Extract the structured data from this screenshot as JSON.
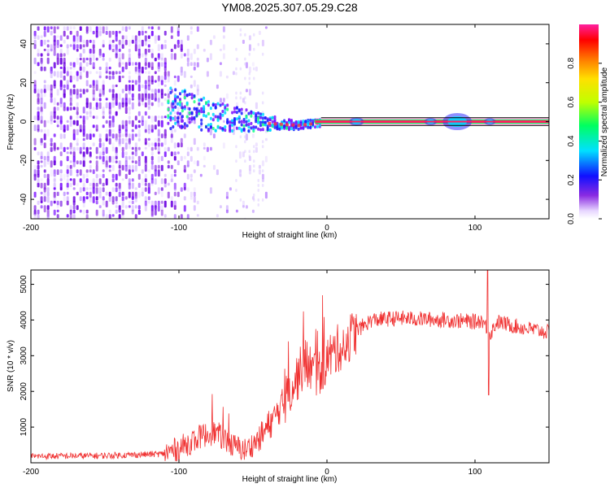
{
  "title": "YM08.2025.307.05.29.C28",
  "chart_data": [
    {
      "type": "heatmap",
      "xlabel": "Height of straight line (km)",
      "ylabel": "Frequency (Hz)",
      "xlim": [
        -200,
        150
      ],
      "ylim": [
        -50,
        50
      ],
      "xticks": [
        -200,
        -100,
        0,
        100
      ],
      "yticks": [
        -40,
        -20,
        0,
        20,
        40
      ],
      "colorbar": {
        "label": "Normalized spectral amplitude",
        "range": [
          0,
          1
        ],
        "ticks": [
          "0.0",
          "0.2",
          "0.4",
          "0.6",
          "0.8"
        ]
      },
      "ridge": {
        "x": [
          -100,
          -80,
          -60,
          -40,
          -20,
          0,
          150
        ],
        "y": [
          7,
          3,
          1,
          -1,
          -2,
          0,
          0
        ]
      },
      "reference_lines_hz": [
        2,
        -2
      ]
    },
    {
      "type": "line",
      "xlabel": "Height of straight line (km)",
      "ylabel": "SNR (10 * v/v)",
      "xlim": [
        -200,
        150
      ],
      "ylim": [
        0,
        5400
      ],
      "xticks": [
        -200,
        -100,
        0,
        100
      ],
      "yticks": [
        1000,
        2000,
        3000,
        4000,
        5000
      ],
      "series": [
        {
          "name": "SNR",
          "color": "#f03030",
          "x": [
            -200,
            -150,
            -110,
            -100,
            -85,
            -75,
            -65,
            -55,
            -45,
            -35,
            -25,
            -15,
            -10,
            -5,
            0,
            5,
            10,
            20,
            30,
            50,
            80,
            100,
            105,
            110,
            115,
            130,
            150
          ],
          "y": [
            180,
            200,
            250,
            400,
            750,
            850,
            500,
            350,
            700,
            1300,
            2000,
            2800,
            2600,
            2500,
            2900,
            3100,
            3300,
            3700,
            4000,
            4050,
            4000,
            3950,
            4000,
            3600,
            3950,
            3800,
            3650
          ]
        }
      ]
    }
  ]
}
